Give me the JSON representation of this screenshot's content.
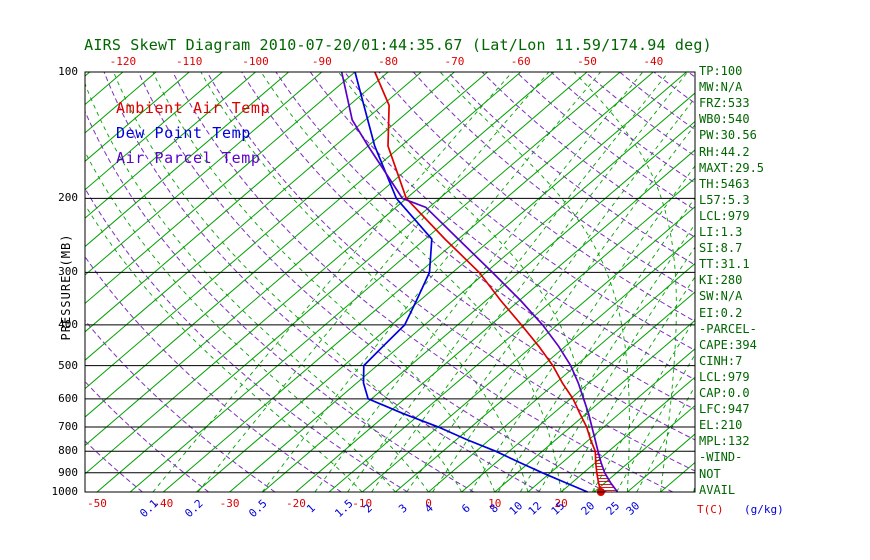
{
  "title": "AIRS SkewT Diagram 2010-07-20/01:44:35.67 (Lat/Lon 11.59/174.94 deg)",
  "colors": {
    "temp": "#dd0000",
    "dewpoint": "#0000dd",
    "parcel": "#5a00c8",
    "isotherm": "#00a000",
    "dry_adiabat": "#7b2fbe",
    "axis": "#000000",
    "annotation": "#006600"
  },
  "legend": {
    "ambient": "Ambient Air Temp",
    "dewpoint": "Dew Point Temp",
    "parcel": "Air Parcel Temp"
  },
  "axes": {
    "pressure_label": "PRESSURE (MB)",
    "pressure_ticks": [
      100,
      200,
      300,
      400,
      500,
      600,
      700,
      800,
      900,
      1000
    ],
    "top_temp_ticks": [
      -120,
      -110,
      -100,
      -90,
      -80,
      -70,
      -60,
      -50,
      -40
    ],
    "bottom_temp_ticks": [
      -50,
      -40,
      -30,
      -20,
      -10,
      0,
      10,
      20
    ],
    "temp_unit_label": "T(C)",
    "mixing_ratio_ticks": [
      0.1,
      0.2,
      0.5,
      1,
      1.5,
      2,
      3,
      4,
      6,
      8,
      10,
      12,
      15,
      20,
      25,
      30
    ],
    "mixing_unit_label": "(g/kg)"
  },
  "stats": [
    "TP:100",
    "MW:N/A",
    "FRZ:533",
    "WB0:540",
    "PW:30.56",
    "RH:44.2",
    "MAXT:29.5",
    "TH:5463",
    "L57:5.3",
    "LCL:979",
    "LI:1.3",
    "SI:8.7",
    "TT:31.1",
    "KI:280",
    "SW:N/A",
    "EI:0.2",
    "-PARCEL-",
    "CAPE:394",
    "CINH:7",
    "LCL:979",
    "CAP:0.0",
    "LFC:947",
    "EL:210",
    "MPL:132",
    "-WIND-",
    "NOT",
    "AVAIL"
  ],
  "chart_data": {
    "type": "skewt",
    "pressure_range_mb": [
      100,
      1000
    ],
    "pressure_log_scale": true,
    "isotherms": {
      "min": -125,
      "max": 40,
      "step": 5,
      "unit": "C"
    },
    "dry_adiabats": {
      "min": 220,
      "max": 460,
      "step": 10,
      "unit": "K"
    },
    "moist_adiabats": {
      "min": -10,
      "max": 40,
      "step": 5,
      "unit": "C_at_1000mb"
    },
    "cape_hatch_pressure_range": [
      800,
      1000
    ],
    "series": [
      {
        "key": "temp",
        "name": "Ambient Air Temp",
        "color_key": "temp",
        "points": [
          [
            1000,
            26
          ],
          [
            950,
            24
          ],
          [
            900,
            22
          ],
          [
            850,
            20
          ],
          [
            800,
            18
          ],
          [
            750,
            15.2
          ],
          [
            700,
            12.4
          ],
          [
            650,
            9
          ],
          [
            600,
            5.4
          ],
          [
            550,
            1
          ],
          [
            500,
            -3.5
          ],
          [
            450,
            -9
          ],
          [
            400,
            -15.4
          ],
          [
            350,
            -22.8
          ],
          [
            300,
            -31
          ],
          [
            250,
            -42
          ],
          [
            200,
            -55
          ],
          [
            150,
            -67
          ],
          [
            120,
            -74
          ],
          [
            100,
            -82
          ]
        ]
      },
      {
        "key": "dewpoint",
        "name": "Dew Point Temp",
        "color_key": "dewpoint",
        "points": [
          [
            1000,
            24
          ],
          [
            950,
            19
          ],
          [
            900,
            13.8
          ],
          [
            850,
            8.5
          ],
          [
            800,
            3
          ],
          [
            750,
            -3.5
          ],
          [
            700,
            -10
          ],
          [
            650,
            -17.7
          ],
          [
            600,
            -25.5
          ],
          [
            550,
            -29
          ],
          [
            500,
            -32
          ],
          [
            450,
            -32.5
          ],
          [
            400,
            -33
          ],
          [
            350,
            -35.5
          ],
          [
            300,
            -38.5
          ],
          [
            250,
            -44
          ],
          [
            200,
            -56.5
          ],
          [
            150,
            -69
          ],
          [
            100,
            -85
          ]
        ]
      },
      {
        "key": "parcel",
        "name": "Air Parcel Temp",
        "color_key": "parcel",
        "points": [
          [
            1000,
            28.5
          ],
          [
            950,
            25.8
          ],
          [
            900,
            23.2
          ],
          [
            850,
            20.8
          ],
          [
            800,
            18.4
          ],
          [
            750,
            15.9
          ],
          [
            700,
            13.2
          ],
          [
            650,
            10.3
          ],
          [
            600,
            7
          ],
          [
            550,
            3.4
          ],
          [
            500,
            -0.8
          ],
          [
            450,
            -6
          ],
          [
            400,
            -12.2
          ],
          [
            350,
            -19.8
          ],
          [
            300,
            -29
          ],
          [
            250,
            -40
          ],
          [
            210,
            -50.5
          ],
          [
            200,
            -55.6
          ],
          [
            150,
            -70
          ],
          [
            130,
            -77
          ],
          [
            100,
            -87
          ]
        ]
      }
    ]
  }
}
